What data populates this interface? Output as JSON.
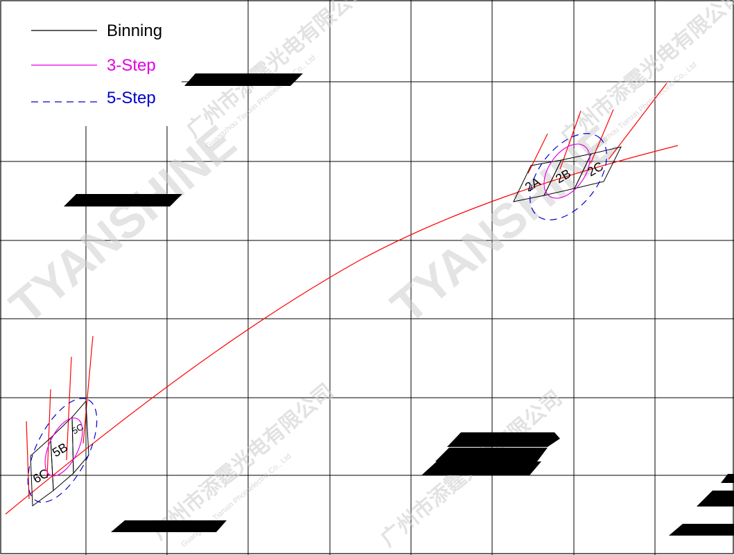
{
  "legend": {
    "binning_label": "Binning",
    "three_step_label": "3-Step",
    "five_step_label": "5-Step"
  },
  "bins": {
    "a2": "2A",
    "b2": "2B",
    "c2": "2C",
    "b5": "5B",
    "c5": "5C",
    "c6": "6C"
  },
  "watermark": {
    "brand": "TYANSHINE",
    "chinese": "广州市添霆光电有限公司",
    "english": "Guangzhou Tianxin Photoelectric Co., Ltd"
  },
  "colors": {
    "grid": "#000000",
    "binning": "#000000",
    "three_step": "#e400e4",
    "five_step": "#0000cc",
    "curve": "#ff0000",
    "redaction": "#000000"
  }
}
